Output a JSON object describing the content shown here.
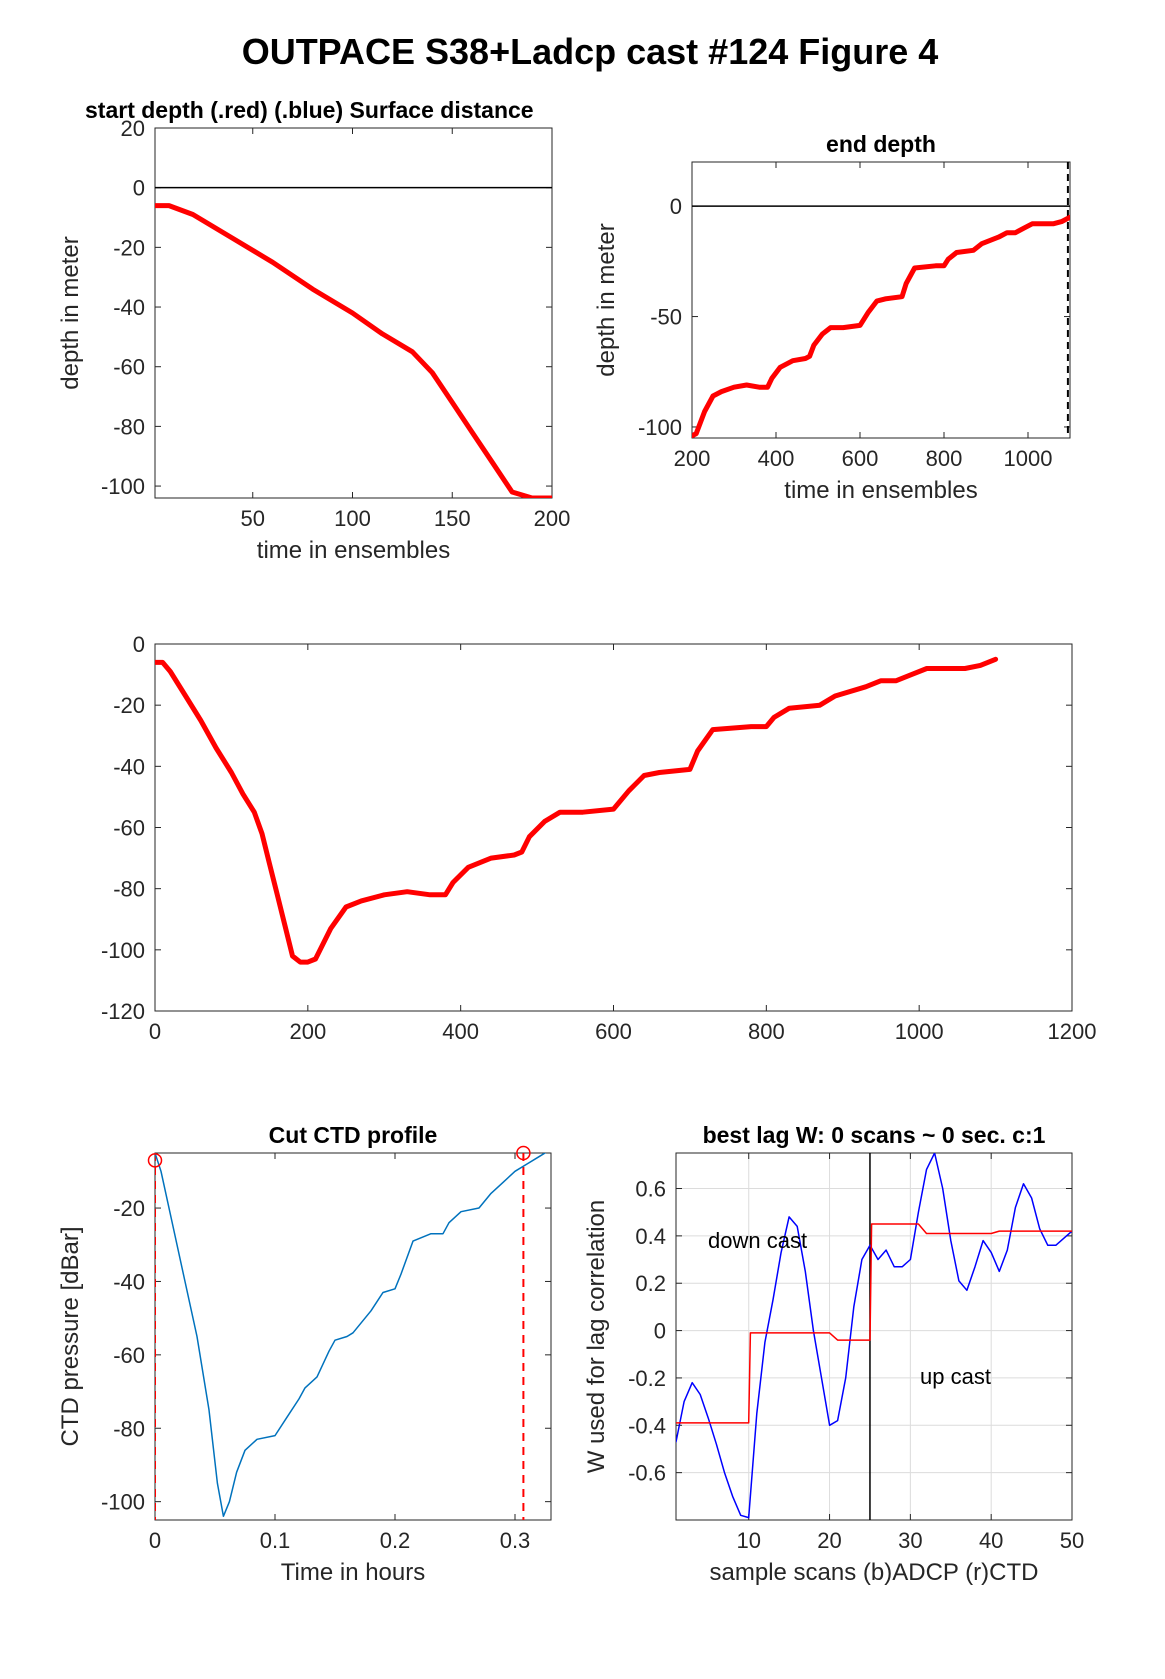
{
  "figure_title": "OUTPACE S38+Ladcp cast #124   Figure 4",
  "chart_data": [
    {
      "type": "line",
      "title": "start depth (.red) (.blue) Surface distance",
      "xlabel": "time in ensembles",
      "ylabel": "depth in meter",
      "xlim": [
        1,
        200
      ],
      "ylim": [
        -104,
        20
      ],
      "xticks": [
        50,
        100,
        150,
        200
      ],
      "yticks": [
        20,
        0,
        -20,
        -40,
        -60,
        -80,
        -100
      ],
      "grid": false,
      "hline": 0,
      "series": [
        {
          "color": "#ff0000",
          "x": [
            1,
            8,
            20,
            40,
            60,
            80,
            100,
            115,
            130,
            140,
            150,
            160,
            170,
            180,
            190,
            200
          ],
          "y": [
            -6,
            -6,
            -9,
            -17,
            -25,
            -34,
            -42,
            -49,
            -55,
            -62,
            -72,
            -82,
            -92,
            -102,
            -104,
            -104
          ]
        }
      ]
    },
    {
      "type": "line",
      "title": "end depth",
      "xlabel": "time in ensembles",
      "ylabel": "depth in meter",
      "xlim": [
        200,
        1100
      ],
      "ylim": [
        -105,
        20
      ],
      "xticks": [
        200,
        400,
        600,
        800,
        1000
      ],
      "yticks": [
        0,
        -50,
        -100
      ],
      "grid": false,
      "hline": 0,
      "vline_dashed": 1095,
      "series": [
        {
          "color": "#ff0000",
          "x": [
            200,
            210,
            230,
            250,
            270,
            300,
            330,
            360,
            380,
            390,
            410,
            440,
            470,
            480,
            490,
            510,
            530,
            560,
            600,
            620,
            640,
            660,
            700,
            710,
            730,
            780,
            800,
            810,
            830,
            870,
            890,
            930,
            950,
            970,
            990,
            1010,
            1050,
            1060,
            1080,
            1100
          ],
          "y": [
            -104,
            -103,
            -93,
            -86,
            -84,
            -82,
            -81,
            -82,
            -82,
            -78,
            -73,
            -70,
            -69,
            -68,
            -63,
            -58,
            -55,
            -55,
            -54,
            -48,
            -43,
            -42,
            -41,
            -35,
            -28,
            -27,
            -27,
            -24,
            -21,
            -20,
            -17,
            -14,
            -12,
            -12,
            -10,
            -8,
            -8,
            -8,
            -7,
            -5
          ]
        }
      ]
    },
    {
      "type": "line",
      "title": "",
      "xlabel": "",
      "ylabel": "",
      "xlim": [
        0,
        1200
      ],
      "ylim": [
        -120,
        0
      ],
      "xticks": [
        0,
        200,
        400,
        600,
        800,
        1000,
        1200
      ],
      "yticks": [
        0,
        -20,
        -40,
        -60,
        -80,
        -100,
        -120
      ],
      "grid": false,
      "series": [
        {
          "color": "#ff0000",
          "x": [
            1,
            10,
            20,
            40,
            60,
            80,
            100,
            115,
            130,
            140,
            150,
            160,
            170,
            180,
            190,
            200,
            210,
            230,
            250,
            270,
            300,
            330,
            360,
            380,
            390,
            410,
            440,
            470,
            480,
            490,
            510,
            530,
            560,
            600,
            620,
            640,
            660,
            700,
            710,
            730,
            780,
            800,
            810,
            830,
            870,
            890,
            930,
            950,
            970,
            990,
            1010,
            1050,
            1060,
            1080,
            1100
          ],
          "y": [
            -6,
            -6,
            -9,
            -17,
            -25,
            -34,
            -42,
            -49,
            -55,
            -62,
            -72,
            -82,
            -92,
            -102,
            -104,
            -104,
            -103,
            -93,
            -86,
            -84,
            -82,
            -81,
            -82,
            -82,
            -78,
            -73,
            -70,
            -69,
            -68,
            -63,
            -58,
            -55,
            -55,
            -54,
            -48,
            -43,
            -42,
            -41,
            -35,
            -28,
            -27,
            -27,
            -24,
            -21,
            -20,
            -17,
            -14,
            -12,
            -12,
            -10,
            -8,
            -8,
            -8,
            -7,
            -5
          ]
        }
      ]
    },
    {
      "type": "line",
      "title": "Cut CTD profile",
      "xlabel": "Time in hours",
      "ylabel": "CTD pressure [dBar]",
      "xlim": [
        0,
        0.33
      ],
      "ylim": [
        -105,
        -5
      ],
      "xticks": [
        0,
        0.1,
        0.2,
        0.3
      ],
      "yticks": [
        -20,
        -40,
        -60,
        -80,
        -100
      ],
      "grid": false,
      "cut_lines": [
        0.0,
        0.307
      ],
      "series": [
        {
          "color": "#0072bd",
          "x": [
            0,
            0.005,
            0.015,
            0.025,
            0.035,
            0.045,
            0.052,
            0.057,
            0.062,
            0.068,
            0.075,
            0.085,
            0.1,
            0.11,
            0.12,
            0.125,
            0.135,
            0.145,
            0.15,
            0.16,
            0.165,
            0.18,
            0.19,
            0.2,
            0.205,
            0.215,
            0.23,
            0.24,
            0.245,
            0.255,
            0.27,
            0.28,
            0.29,
            0.3,
            0.31,
            0.32,
            0.33
          ],
          "y": [
            -5,
            -10,
            -25,
            -40,
            -55,
            -75,
            -95,
            -104,
            -100,
            -92,
            -86,
            -83,
            -82,
            -77,
            -72,
            -69,
            -66,
            -59,
            -56,
            -55,
            -54,
            -48,
            -43,
            -42,
            -38,
            -29,
            -27,
            -27,
            -24,
            -21,
            -20,
            -16,
            -13,
            -10,
            -8,
            -6,
            -4
          ]
        },
        {
          "color": "#00ff00",
          "x": [
            0.32,
            0.33
          ],
          "y": [
            -4,
            -3.5
          ]
        }
      ],
      "markers": [
        {
          "x": 0.0,
          "y": -7
        },
        {
          "x": 0.307,
          "y": -5
        }
      ]
    },
    {
      "type": "line",
      "title": "best lag W: 0 scans ~ 0 sec.  c:1",
      "xlabel": "sample scans (b)ADCP (r)CTD",
      "ylabel": "W used for lag correlation",
      "xlim": [
        1,
        50
      ],
      "ylim": [
        -0.8,
        0.75
      ],
      "xticks": [
        10,
        20,
        30,
        40,
        50
      ],
      "yticks": [
        0.6,
        0.4,
        0.2,
        0,
        -0.2,
        -0.4,
        -0.6
      ],
      "grid": true,
      "vline": 25,
      "annotations": [
        "down cast",
        "up cast"
      ],
      "series": [
        {
          "color": "#0000ff",
          "x": [
            1,
            2,
            3,
            4,
            5,
            6,
            7,
            8,
            9,
            10,
            11,
            12,
            13,
            14,
            15,
            16,
            17,
            18,
            19,
            20,
            21,
            22,
            23,
            24,
            25,
            26,
            27,
            28,
            29,
            30,
            31,
            32,
            33,
            34,
            35,
            36,
            37,
            38,
            39,
            40,
            41,
            42,
            43,
            44,
            45,
            46,
            47,
            48,
            49,
            50
          ],
          "y": [
            -0.47,
            -0.3,
            -0.22,
            -0.27,
            -0.37,
            -0.48,
            -0.6,
            -0.7,
            -0.78,
            -0.79,
            -0.35,
            -0.05,
            0.13,
            0.33,
            0.48,
            0.44,
            0.25,
            0.0,
            -0.2,
            -0.4,
            -0.38,
            -0.2,
            0.1,
            0.3,
            0.36,
            0.3,
            0.34,
            0.27,
            0.27,
            0.3,
            0.5,
            0.68,
            0.75,
            0.6,
            0.38,
            0.21,
            0.17,
            0.27,
            0.38,
            0.33,
            0.25,
            0.34,
            0.52,
            0.62,
            0.56,
            0.43,
            0.36,
            0.36,
            0.39,
            0.42
          ]
        },
        {
          "color": "#ff0000",
          "x": [
            1,
            10,
            10.2,
            20,
            21,
            25,
            25.2,
            31,
            32,
            40,
            41,
            50
          ],
          "y": [
            -0.39,
            -0.39,
            -0.01,
            -0.01,
            -0.04,
            -0.04,
            0.45,
            0.45,
            0.41,
            0.41,
            0.42,
            0.42
          ]
        }
      ]
    }
  ]
}
